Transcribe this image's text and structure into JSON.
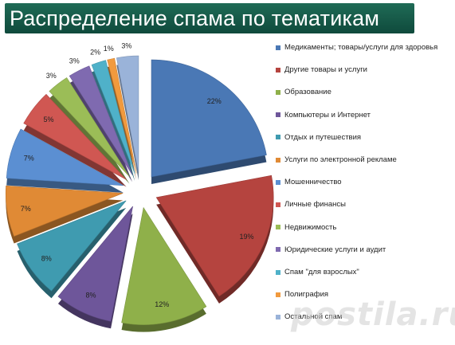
{
  "title": "Распределение спама по тематикам",
  "watermark": "postila.ru",
  "chart_data": {
    "type": "pie",
    "style": "3d-exploded",
    "legend_position": "right",
    "slices": [
      {
        "label": "Медикаменты; товары/услуги для здоровья",
        "value": 22,
        "data_label": "22%",
        "color": "#4a78b5"
      },
      {
        "label": "Другие товары  и услуги",
        "value": 19,
        "data_label": "19%",
        "color": "#b5443f"
      },
      {
        "label": "Образование",
        "value": 12,
        "data_label": "12%",
        "color": "#8fb04a"
      },
      {
        "label": "Компьютеры и Интернет",
        "value": 8,
        "data_label": "8%",
        "color": "#6e569a"
      },
      {
        "label": "Отдых и путешествия",
        "value": 8,
        "data_label": "8%",
        "color": "#3f9bb0"
      },
      {
        "label": "Услуги по электронной  рекламе",
        "value": 7,
        "data_label": "7%",
        "color": "#e08a35"
      },
      {
        "label": "Мошенничество",
        "value": 7,
        "data_label": "7%",
        "color": "#5b8fd2"
      },
      {
        "label": "Личные финансы",
        "value": 5,
        "data_label": "5%",
        "color": "#d05752"
      },
      {
        "label": "Недвижимость",
        "value": 3,
        "data_label": "3%",
        "color": "#9bbd57"
      },
      {
        "label": "Юридические услуги и  аудит",
        "value": 3,
        "data_label": "3%",
        "color": "#7f6ab0"
      },
      {
        "label": "Спам \"для взрослых\"",
        "value": 2,
        "data_label": "2%",
        "color": "#4fb1c9"
      },
      {
        "label": "Полиграфия",
        "value": 1,
        "data_label": "1%",
        "color": "#f19a3e"
      },
      {
        "label": "Остальной спам",
        "value": 3,
        "data_label": "3%",
        "color": "#9ab3d9"
      }
    ]
  }
}
